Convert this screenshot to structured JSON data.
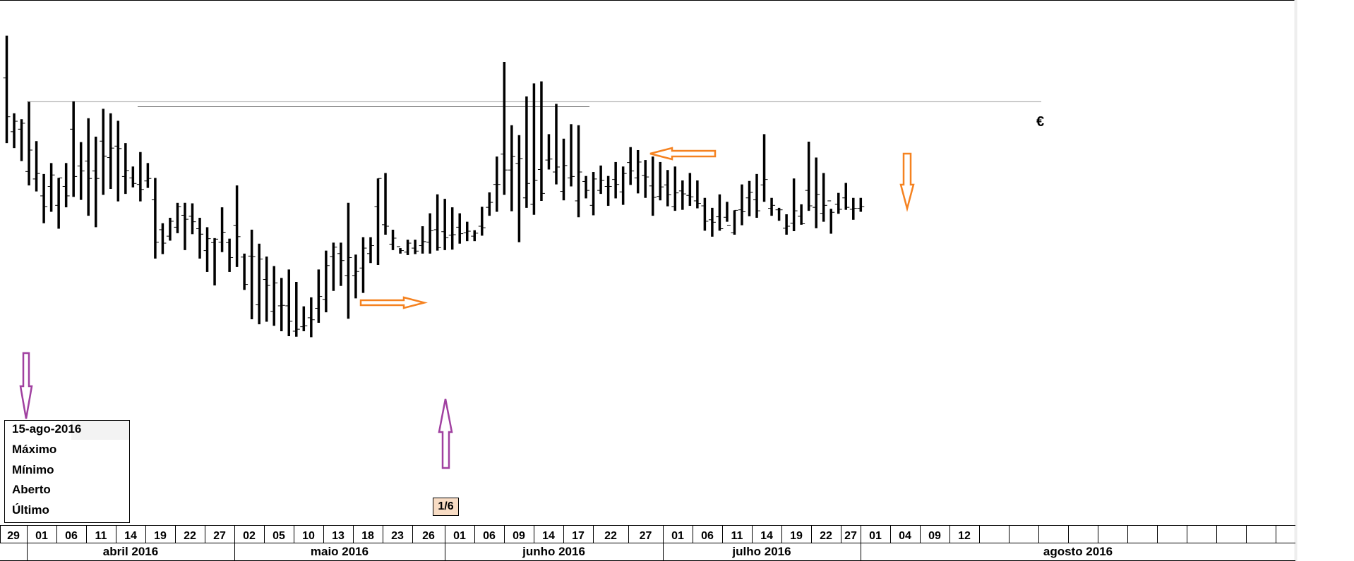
{
  "chart_data": {
    "type": "ohlc",
    "title": "",
    "unit": "€",
    "ylim": [
      0,
      100
    ],
    "reference_line": 83.6,
    "days": [
      "29",
      "01",
      "06",
      "11",
      "14",
      "19",
      "22",
      "27",
      "02",
      "05",
      "10",
      "13",
      "18",
      "23",
      "26",
      "01",
      "06",
      "09",
      "14",
      "17",
      "22",
      "27",
      "01",
      "06",
      "11",
      "14",
      "19",
      "22",
      "27",
      "01",
      "04",
      "09",
      "12"
    ],
    "months": [
      "abril 2016",
      "maio 2016",
      "junho 2016",
      "julho 2016",
      "agosto 2016"
    ],
    "bars": [
      [
        96.8,
        75.2,
        88.3,
        80.5
      ],
      [
        81.2,
        74.2,
        77.5,
        79.6
      ],
      [
        80.0,
        71.6,
        78.0,
        79.2
      ],
      [
        83.5,
        66.7,
        69.5,
        73.8
      ],
      [
        75.6,
        65.5,
        68.0,
        69.1
      ],
      [
        69.0,
        59.1,
        64.6,
        62.4
      ],
      [
        71.2,
        61.4,
        66.5,
        68.8
      ],
      [
        68.2,
        58.0,
        62.7,
        68.2
      ],
      [
        71.2,
        62.3,
        66.5,
        64.6
      ],
      [
        83.6,
        64.4,
        78.0,
        68.5
      ],
      [
        75.4,
        63.8,
        70.6,
        69.6
      ],
      [
        80.2,
        60.6,
        71.6,
        68.1
      ],
      [
        76.5,
        58.3,
        69.6,
        68.1
      ],
      [
        82.1,
        64.8,
        75.6,
        72.6
      ],
      [
        81.2,
        66.0,
        72.3,
        74.2
      ],
      [
        79.7,
        63.5,
        74.6,
        74.1
      ],
      [
        75.2,
        65.0,
        68.5,
        69.7
      ],
      [
        70.5,
        66.3,
        68.2,
        67.1
      ],
      [
        73.4,
        63.5,
        66.9,
        65.9
      ],
      [
        71.2,
        66.2,
        67.6,
        68.1
      ],
      [
        68.2,
        52.0,
        63.8,
        55.3
      ],
      [
        59.1,
        52.9,
        57.8,
        55.1
      ],
      [
        60.2,
        55.6,
        56.5,
        59.5
      ],
      [
        63.2,
        57.1,
        58.3,
        62.4
      ],
      [
        63.2,
        53.7,
        60.7,
        59.9
      ],
      [
        63.1,
        56.9,
        60.5,
        59.4
      ],
      [
        60.2,
        52.0,
        58.0,
        56.9
      ],
      [
        58.3,
        49.3,
        53.6,
        56.0
      ],
      [
        56.1,
        46.6,
        55.2,
        55.9
      ],
      [
        62.3,
        53.3,
        55.3,
        57.3
      ],
      [
        56.0,
        49.3,
        55.2,
        52.2
      ],
      [
        66.7,
        50.3,
        58.7,
        56.4
      ],
      [
        53.0,
        45.7,
        52.3,
        46.8
      ],
      [
        57.8,
        39.8,
        52.5,
        52.4
      ],
      [
        55.0,
        38.8,
        42.7,
        51.9
      ],
      [
        52.4,
        39.3,
        47.8,
        46.6
      ],
      [
        50.5,
        38.5,
        41.4,
        47.1
      ],
      [
        48.1,
        37.4,
        42.5,
        42.6
      ],
      [
        49.8,
        36.4,
        42.5,
        39.4
      ],
      [
        47.3,
        36.3,
        37.4,
        37.8
      ],
      [
        42.4,
        37.4,
        38.3,
        38.5
      ],
      [
        44.2,
        36.2,
        40.1,
        39.7
      ],
      [
        49.8,
        39.1,
        42.0,
        44.4
      ],
      [
        53.6,
        41.2,
        43.8,
        50.6
      ],
      [
        55.2,
        45.5,
        52.4,
        54.3
      ],
      [
        55.2,
        46.5,
        53.0,
        51.6
      ],
      [
        63.2,
        39.9,
        48.6,
        52.2
      ],
      [
        52.8,
        44.0,
        48.6,
        49.4
      ],
      [
        56.3,
        45.1,
        50.1,
        54.1
      ],
      [
        56.3,
        51.1,
        53.0,
        54.6
      ],
      [
        68.1,
        50.7,
        62.4,
        68.1
      ],
      [
        69.2,
        56.8,
        58.8,
        58.5
      ],
      [
        57.8,
        53.7,
        54.9,
        56.1
      ],
      [
        54.1,
        53.0,
        54.4,
        53.6
      ],
      [
        55.8,
        52.7,
        53.3,
        55.1
      ],
      [
        55.8,
        52.9,
        54.1,
        53.5
      ],
      [
        58.5,
        53.0,
        54.6,
        55.4
      ],
      [
        61.1,
        53.0,
        55.3,
        57.6
      ],
      [
        64.9,
        53.6,
        57.8,
        54.2
      ],
      [
        64.0,
        53.7,
        57.4,
        56.2
      ],
      [
        62.3,
        53.8,
        56.7,
        56.8
      ],
      [
        61.1,
        55.0,
        58.3,
        57.0
      ],
      [
        59.4,
        55.5,
        57.2,
        57.5
      ],
      [
        57.7,
        55.5,
        56.5,
        57.1
      ],
      [
        62.4,
        56.6,
        58.5,
        58.2
      ],
      [
        65.3,
        60.6,
        62.3,
        63.3
      ],
      [
        72.5,
        61.4,
        66.9,
        66.9
      ],
      [
        91.5,
        64.8,
        73.0,
        69.8
      ],
      [
        78.8,
        61.5,
        69.8,
        72.5
      ],
      [
        76.8,
        55.3,
        71.1,
        72.1
      ],
      [
        84.6,
        62.2,
        64.2,
        67.1
      ],
      [
        87.2,
        60.8,
        62.9,
        67.7
      ],
      [
        87.6,
        63.6,
        69.9,
        65.1
      ],
      [
        77.0,
        69.9,
        71.8,
        72.0
      ],
      [
        83.1,
        66.9,
        69.4,
        70.4
      ],
      [
        76.1,
        63.7,
        65.5,
        70.7
      ],
      [
        79.0,
        66.5,
        68.2,
        68.5
      ],
      [
        78.8,
        60.3,
        63.6,
        69.4
      ],
      [
        68.6,
        64.1,
        67.5,
        65.7
      ],
      [
        69.4,
        60.7,
        62.7,
        68.0
      ],
      [
        70.7,
        65.0,
        65.7,
        67.7
      ],
      [
        68.6,
        62.6,
        66.5,
        66.5
      ],
      [
        71.4,
        64.1,
        67.9,
        66.9
      ],
      [
        70.5,
        62.8,
        65.4,
        69.1
      ],
      [
        74.4,
        66.8,
        71.3,
        69.6
      ],
      [
        73.8,
        65.1,
        68.2,
        71.4
      ],
      [
        71.8,
        64.2,
        68.7,
        68.4
      ],
      [
        72.5,
        60.6,
        66.6,
        64.3
      ],
      [
        71.4,
        63.7,
        64.5,
        66.4
      ],
      [
        69.8,
        62.5,
        66.8,
        64.8
      ],
      [
        70.5,
        61.6,
        62.4,
        65.2
      ],
      [
        67.7,
        61.8,
        65.6,
        65.0
      ],
      [
        69.2,
        62.6,
        64.7,
        64.4
      ],
      [
        67.7,
        62.1,
        63.6,
        63.1
      ],
      [
        64.2,
        57.6,
        62.6,
        59.5
      ],
      [
        62.2,
        56.4,
        59.8,
        59.3
      ],
      [
        64.9,
        57.6,
        60.4,
        58.0
      ],
      [
        63.4,
        59.4,
        60.3,
        58.7
      ],
      [
        61.7,
        56.8,
        57.2,
        61.7
      ],
      [
        66.9,
        58.7,
        61.8,
        61.4
      ],
      [
        67.6,
        60.5,
        64.2,
        65.3
      ],
      [
        69.0,
        60.2,
        63.8,
        61.6
      ],
      [
        77.0,
        63.4,
        66.8,
        67.9
      ],
      [
        64.2,
        60.6,
        62.1,
        62.7
      ],
      [
        62.2,
        59.6,
        61.8,
        61.8
      ],
      [
        60.9,
        56.8,
        58.1,
        58.5
      ],
      [
        68.1,
        57.5,
        59.1,
        61.6
      ],
      [
        62.9,
        58.8,
        60.5,
        59.0
      ],
      [
        75.5,
        61.6,
        65.7,
        62.6
      ],
      [
        72.3,
        58.1,
        62.3,
        64.9
      ],
      [
        69.2,
        59.4,
        61.1,
        62.7
      ],
      [
        62.0,
        57.0,
        63.6,
        61.3
      ],
      [
        65.2,
        61.0,
        62.9,
        61.9
      ],
      [
        67.2,
        61.8,
        64.2,
        62.3
      ],
      [
        64.2,
        59.8,
        61.9,
        62.1
      ],
      [
        64.2,
        61.4,
        62.1,
        62.4
      ]
    ]
  },
  "info": {
    "date": "15-ago-2016",
    "max_label": "Máximo",
    "min_label": "Mínimo",
    "open_label": "Aberto",
    "last_label": "Último"
  },
  "badge": "1/6",
  "colors": {
    "bars": "#000000",
    "orange_arrow": "#f58220",
    "purple_arrow": "#a040a0",
    "badge_bg": "#f8dcc4"
  }
}
